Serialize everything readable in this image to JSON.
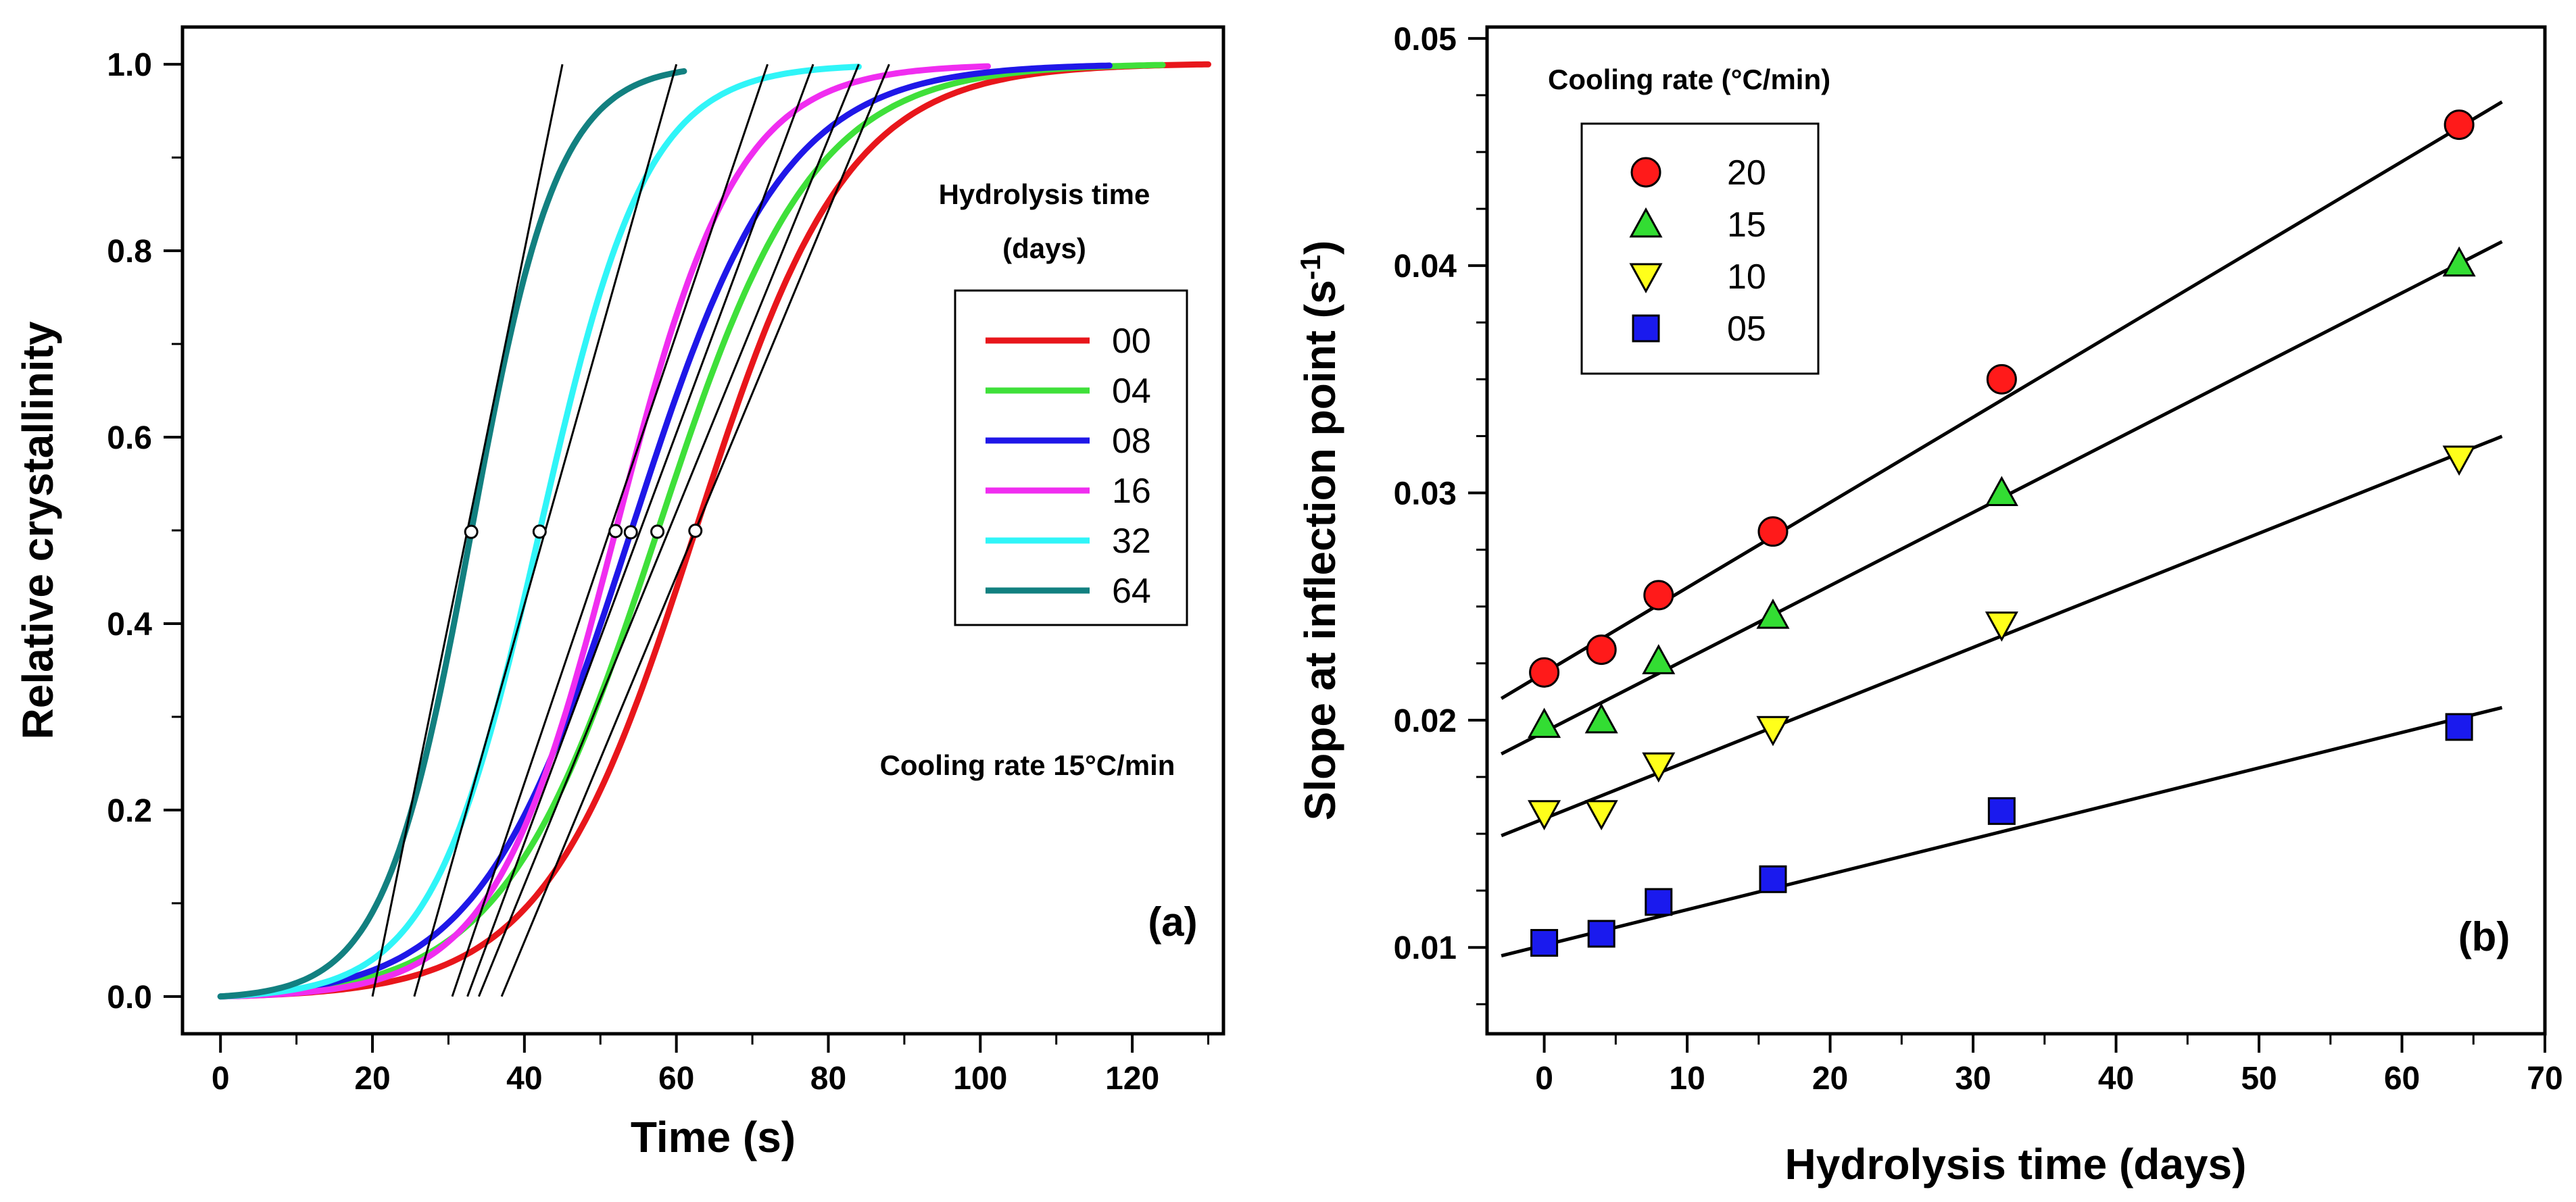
{
  "chart_data": [
    {
      "type": "line",
      "panel_label": "(a)",
      "xlabel": "Time (s)",
      "ylabel": "Relative crystallinity",
      "xlim": [
        -5,
        132
      ],
      "ylim": [
        -0.04,
        1.04
      ],
      "xticks": [
        0,
        20,
        40,
        60,
        80,
        100,
        120
      ],
      "yticks": [
        0.0,
        0.2,
        0.4,
        0.6,
        0.8,
        1.0
      ],
      "ytick_labels": [
        "0.0",
        "0.2",
        "0.4",
        "0.6",
        "0.8",
        "1.0"
      ],
      "legend_title_line1": "Hydrolysis time",
      "legend_title_line2": "(days)",
      "annotation": "Cooling rate 15°C/min",
      "series": [
        {
          "name": "00",
          "color": "#e8161b",
          "t_half": 62.5,
          "k": 0.1,
          "t_end": 130,
          "tangent_x": [
            37,
            88
          ]
        },
        {
          "name": "04",
          "color": "#3fe03a",
          "t_half": 57.5,
          "k": 0.098,
          "t_end": 124,
          "tangent_x": [
            34,
            84
          ]
        },
        {
          "name": "08",
          "color": "#1f17e8",
          "t_half": 54.0,
          "k": 0.1,
          "t_end": 117,
          "tangent_x": [
            32.5,
            78
          ]
        },
        {
          "name": "16",
          "color": "#f02df0",
          "t_half": 52.0,
          "k": 0.125,
          "t_end": 101,
          "tangent_x": [
            30.5,
            72
          ]
        },
        {
          "name": "32",
          "color": "#30f5f8",
          "t_half": 42.0,
          "k": 0.142,
          "t_end": 84,
          "tangent_x": [
            25.5,
            60
          ]
        },
        {
          "name": "64",
          "color": "#128080",
          "t_half": 33.0,
          "k": 0.175,
          "t_end": 61,
          "tangent_x": [
            20,
            45
          ]
        }
      ]
    },
    {
      "type": "scatter",
      "panel_label": "(b)",
      "xlabel": "Hydrolysis time (days)",
      "ylabel": "Slope at inflection point (s",
      "ylabel_sup": "-1",
      "ylabel_end": ")",
      "xlim": [
        -4,
        70
      ],
      "ylim": [
        0.0062,
        0.0505
      ],
      "xticks": [
        0,
        10,
        20,
        30,
        40,
        50,
        60,
        70
      ],
      "yticks": [
        0.01,
        0.02,
        0.03,
        0.04,
        0.05
      ],
      "ytick_labels": [
        "0.01",
        "0.02",
        "0.03",
        "0.04",
        "0.05"
      ],
      "legend_title": "Cooling rate (°C/min)",
      "x": [
        0,
        4,
        8,
        16,
        32,
        64
      ],
      "series": [
        {
          "name": "20",
          "marker": "circle",
          "color": "#ff1a1a",
          "values": [
            0.0221,
            0.0231,
            0.0255,
            0.0283,
            0.035,
            0.0462
          ],
          "fit": [
            0.02208,
            0.000375
          ]
        },
        {
          "name": "15",
          "marker": "triangle-up",
          "color": "#33dd33",
          "values": [
            0.0198,
            0.02,
            0.0226,
            0.0246,
            0.03,
            0.0401
          ],
          "fit": [
            0.01948,
            0.000322
          ]
        },
        {
          "name": "10",
          "marker": "triangle-down",
          "color": "#ffff1a",
          "values": [
            0.0159,
            0.0159,
            0.018,
            0.0196,
            0.0242,
            0.0315
          ],
          "fit": [
            0.01567,
            0.000251
          ]
        },
        {
          "name": "05",
          "marker": "square",
          "color": "#1a1aee",
          "values": [
            0.0102,
            0.0106,
            0.012,
            0.013,
            0.016,
            0.0197
          ],
          "fit": [
            0.0101,
            0.000156
          ]
        }
      ]
    }
  ]
}
